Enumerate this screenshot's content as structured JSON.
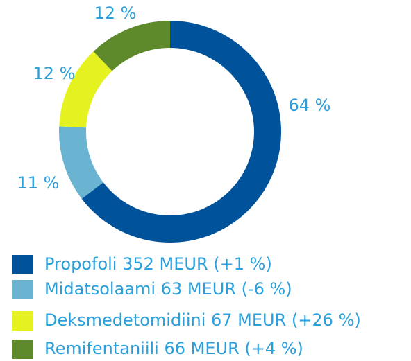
{
  "chart_data": {
    "type": "donut",
    "categories": [
      "Propofoli 352 MEUR (+1 %)",
      "Midatsolaami 63 MEUR (-6 %)",
      "Deksmedetomidiini 67 MEUR (+26 %)",
      "Remifentaniili 66 MEUR (+4 %)"
    ],
    "values": [
      64,
      11,
      12,
      12
    ],
    "value_labels": [
      "64 %",
      "11 %",
      "12 %",
      "12 %"
    ],
    "colors": [
      "#00539b",
      "#6ab4d2",
      "#e6f21f",
      "#5f8a2b"
    ],
    "legend": "bottom-left"
  }
}
